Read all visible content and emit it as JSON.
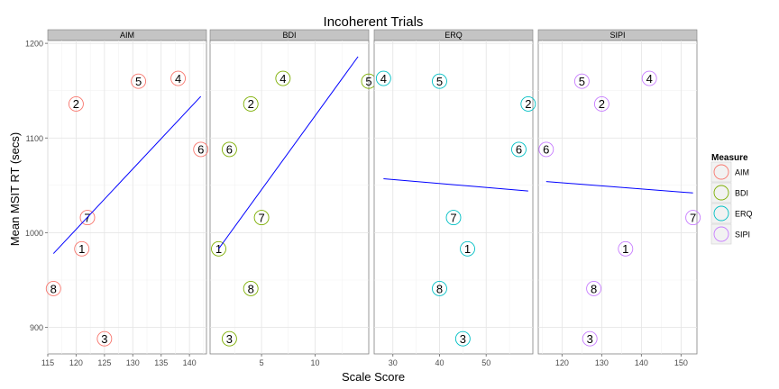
{
  "chart_data": {
    "type": "scatter",
    "title": "Incoherent Trials",
    "xlabel": "Scale Score",
    "ylabel": "Mean MSIT RT (secs)",
    "ylim": [
      872,
      1203
    ],
    "yticks": [
      900,
      1000,
      1100,
      1200
    ],
    "legend": {
      "title": "Measure",
      "position": "right",
      "entries": [
        "AIM",
        "BDI",
        "ERQ",
        "SIPI"
      ]
    },
    "colors": {
      "AIM": "#F8766D",
      "BDI": "#7CAE00",
      "ERQ": "#00BFC4",
      "SIPI": "#C77CFF",
      "fit": "#0000FF"
    },
    "panels": [
      {
        "name": "AIM",
        "xlim": [
          115,
          143
        ],
        "xticks": [
          115,
          120,
          125,
          130,
          135,
          140
        ],
        "points": [
          {
            "label": "1",
            "x": 121,
            "y": 983
          },
          {
            "label": "2",
            "x": 120,
            "y": 1136
          },
          {
            "label": "3",
            "x": 125,
            "y": 888
          },
          {
            "label": "4",
            "x": 138,
            "y": 1163
          },
          {
            "label": "5",
            "x": 131,
            "y": 1160
          },
          {
            "label": "6",
            "x": 142,
            "y": 1088
          },
          {
            "label": "7",
            "x": 122,
            "y": 1016
          },
          {
            "label": "8",
            "x": 116,
            "y": 941
          }
        ],
        "fit": [
          [
            116,
            978
          ],
          [
            142,
            1144
          ]
        ]
      },
      {
        "name": "BDI",
        "xlim": [
          0.2,
          15
        ],
        "xticks": [
          5,
          10
        ],
        "points": [
          {
            "label": "1",
            "x": 1,
            "y": 983
          },
          {
            "label": "2",
            "x": 4,
            "y": 1136
          },
          {
            "label": "3",
            "x": 2,
            "y": 888
          },
          {
            "label": "4",
            "x": 7,
            "y": 1163
          },
          {
            "label": "5",
            "x": 15,
            "y": 1160
          },
          {
            "label": "6",
            "x": 2,
            "y": 1088
          },
          {
            "label": "7",
            "x": 5,
            "y": 1016
          },
          {
            "label": "8",
            "x": 4,
            "y": 941
          }
        ],
        "fit": [
          [
            1,
            983
          ],
          [
            14,
            1186
          ]
        ]
      },
      {
        "name": "ERQ",
        "xlim": [
          26,
          60
        ],
        "xticks": [
          30,
          40,
          50
        ],
        "points": [
          {
            "label": "1",
            "x": 46,
            "y": 983
          },
          {
            "label": "2",
            "x": 59,
            "y": 1136
          },
          {
            "label": "3",
            "x": 45,
            "y": 888
          },
          {
            "label": "4",
            "x": 28,
            "y": 1163
          },
          {
            "label": "5",
            "x": 40,
            "y": 1160
          },
          {
            "label": "6",
            "x": 57,
            "y": 1088
          },
          {
            "label": "7",
            "x": 43,
            "y": 1016
          },
          {
            "label": "8",
            "x": 40,
            "y": 941
          }
        ],
        "fit": [
          [
            28,
            1057
          ],
          [
            59,
            1044
          ]
        ]
      },
      {
        "name": "SIPI",
        "xlim": [
          114,
          154
        ],
        "xticks": [
          120,
          130,
          140,
          150
        ],
        "points": [
          {
            "label": "1",
            "x": 136,
            "y": 983
          },
          {
            "label": "2",
            "x": 130,
            "y": 1136
          },
          {
            "label": "3",
            "x": 127,
            "y": 888
          },
          {
            "label": "4",
            "x": 142,
            "y": 1163
          },
          {
            "label": "5",
            "x": 125,
            "y": 1160
          },
          {
            "label": "6",
            "x": 116,
            "y": 1088
          },
          {
            "label": "7",
            "x": 153,
            "y": 1016
          },
          {
            "label": "8",
            "x": 128,
            "y": 941
          }
        ],
        "fit": [
          [
            116,
            1054
          ],
          [
            153,
            1042
          ]
        ]
      }
    ]
  }
}
